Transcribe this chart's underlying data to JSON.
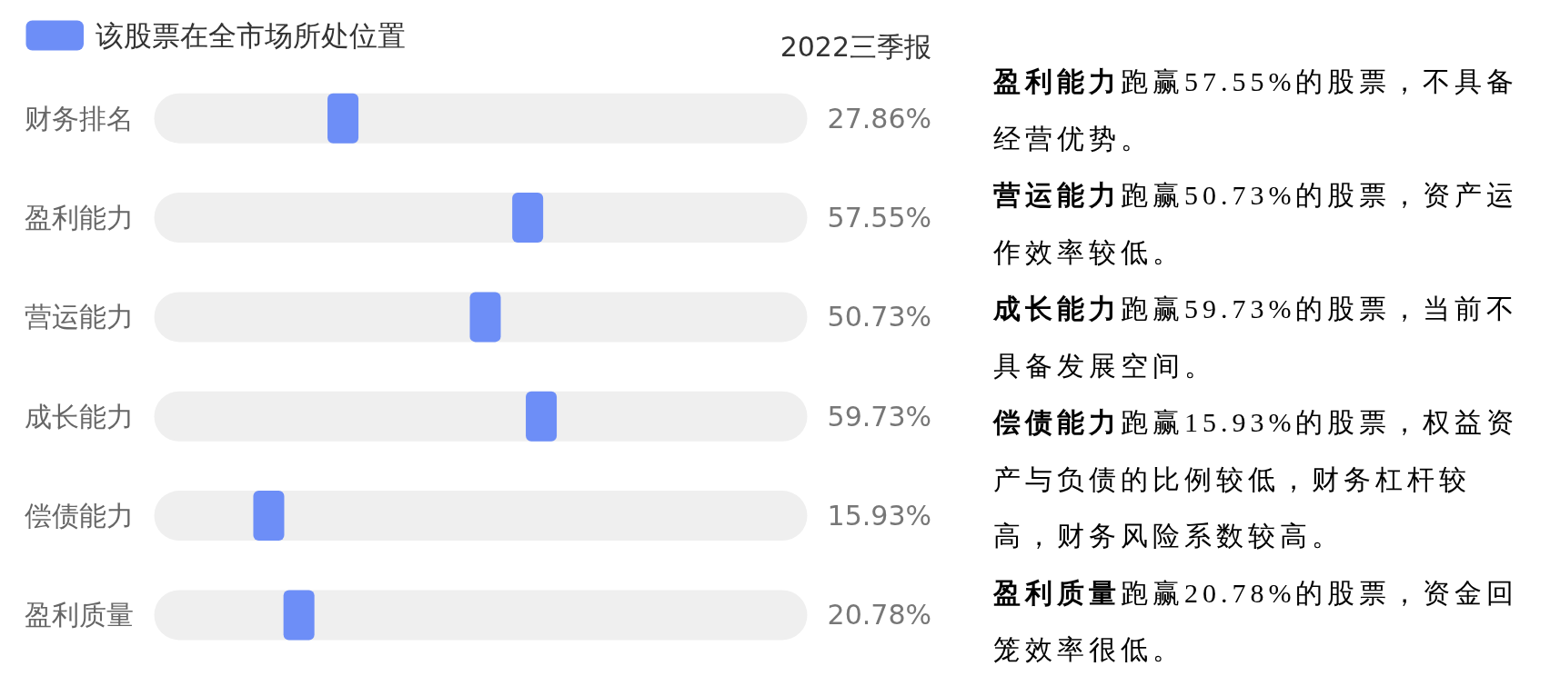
{
  "chart_data": {
    "type": "other",
    "title": "2022三季报",
    "categories": [
      "财务排名",
      "盈利能力",
      "营运能力",
      "成长能力",
      "偿债能力",
      "盈利质量"
    ],
    "legend": "top left",
    "series": [
      {
        "name": "该股票在全市场所处位置",
        "color": "#6d8ef7",
        "values": [
          27.86,
          57.55,
          50.73,
          59.73,
          15.93,
          20.78
        ],
        "value_labels": [
          "27.86%",
          "57.55%",
          "50.73%",
          "59.73%",
          "15.93%",
          "20.78%"
        ]
      }
    ],
    "annotations": [
      "**盈利能力**跑赢57.55%的股票，不具备经营优势。",
      "**营运能力**跑赢50.73%的股票，资产运作效率较低。",
      "**成长能力**跑赢59.73%的股票，当前不具备发展空间。",
      "**偿债能力**跑赢15.93%的股票，权益资产与负债的比例较低，财务杠杆较高，财务风险系数较高。",
      "**盈利质量**跑赢20.78%的股票，资金回笼效率很低。"
    ]
  }
}
